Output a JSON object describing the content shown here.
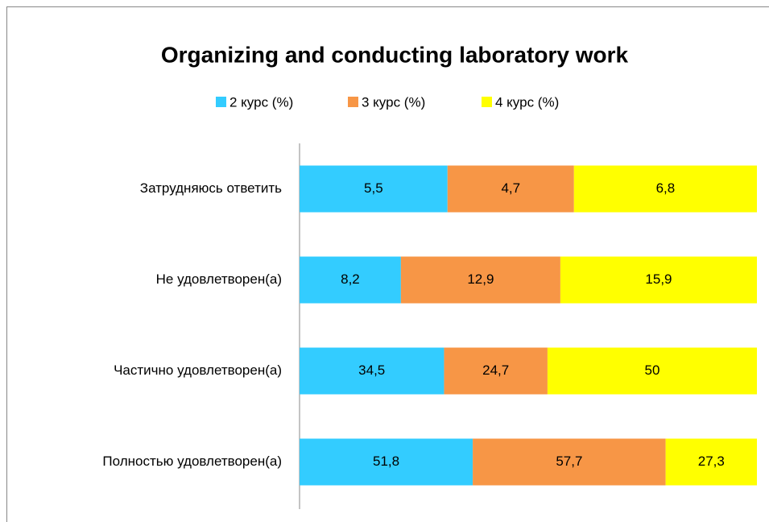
{
  "chart_data": {
    "type": "bar",
    "orientation": "horizontal",
    "stacking": "percent",
    "title": "Organizing and conducting laboratory work",
    "categories": [
      "Затрудняюсь ответить",
      "Не удовлетворен(а)",
      "Частично удовлетворен(а)",
      "Полностью удовлетворен(а)"
    ],
    "series": [
      {
        "name": "2 курс (%)",
        "color": "#33ccff",
        "values": [
          5.5,
          8.2,
          34.5,
          51.8
        ],
        "value_labels": [
          "5,5",
          "8,2",
          "34,5",
          "51,8"
        ]
      },
      {
        "name": "3 курс (%)",
        "color": "#f79646",
        "values": [
          4.7,
          12.9,
          24.7,
          57.7
        ],
        "value_labels": [
          "4,7",
          "12,9",
          "24,7",
          "57,7"
        ]
      },
      {
        "name": "4 курс (%)",
        "color": "#ffff00",
        "values": [
          6.8,
          15.9,
          50,
          27.3
        ],
        "value_labels": [
          "6,8",
          "15,9",
          "50",
          "27,3"
        ]
      }
    ],
    "legend": "top"
  }
}
